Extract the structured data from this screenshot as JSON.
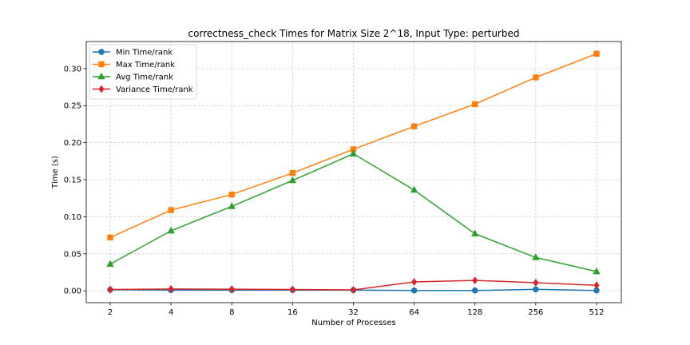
{
  "chart_data": {
    "type": "line",
    "title": "correctness_check Times for Matrix Size 2^18, Input Type: perturbed",
    "xlabel": "Number of Processes",
    "ylabel": "Time (s)",
    "categories": [
      "2",
      "4",
      "8",
      "16",
      "32",
      "64",
      "128",
      "256",
      "512"
    ],
    "x_scale": "log2",
    "ylim": [
      -0.016,
      0.3365
    ],
    "yticks": [
      "0.00",
      "0.05",
      "0.10",
      "0.15",
      "0.20",
      "0.25",
      "0.30"
    ],
    "grid": true,
    "legend_position": "upper left",
    "series": [
      {
        "name": "Min Time/rank",
        "color": "#1f77b4",
        "marker": "circle",
        "values": [
          0.0015,
          0.001,
          0.001,
          0.001,
          0.001,
          0.0005,
          0.0005,
          0.002,
          0.0005
        ]
      },
      {
        "name": "Max Time/rank",
        "color": "#ff7f0e",
        "marker": "square",
        "values": [
          0.072,
          0.109,
          0.13,
          0.159,
          0.191,
          0.222,
          0.252,
          0.288,
          0.32
        ]
      },
      {
        "name": "Avg Time/rank",
        "color": "#2ca02c",
        "marker": "triangle",
        "values": [
          0.036,
          0.081,
          0.114,
          0.149,
          0.185,
          0.136,
          0.077,
          0.045,
          0.026
        ]
      },
      {
        "name": "Variance Time/rank",
        "color": "#d62728",
        "marker": "diamond",
        "values": [
          0.0018,
          0.0025,
          0.0022,
          0.0018,
          0.0012,
          0.012,
          0.014,
          0.011,
          0.0075
        ]
      }
    ]
  }
}
